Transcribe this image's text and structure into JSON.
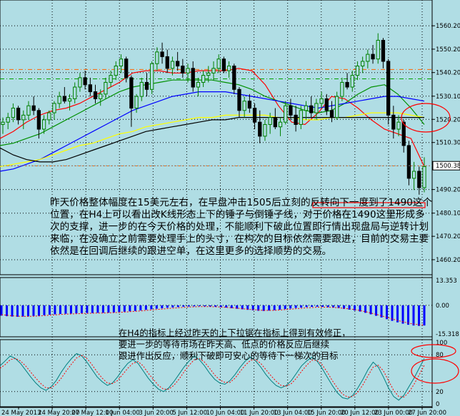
{
  "colors": {
    "background": "#b0dde4",
    "grid": "#000000",
    "bull": "#008000",
    "bear": "#000000",
    "ma_red": "#ff0000",
    "ma_blue": "#0000ff",
    "ma_yellow": "#ffff00",
    "ma_green": "#009000",
    "ma_black": "#000000",
    "level_orange": "#ff6600",
    "level_green": "#00a000",
    "price_box": "#ffffff",
    "macd_bar": "#0000ff",
    "macd_signal": "#ff0000",
    "stoch_main": "#008080",
    "stoch_signal": "#ff0000",
    "highlight": "#ff0000"
  },
  "annotations": {
    "main": "昨天价格整体幅度在15美元左右，在早盘冲击1505后立刻的反转向下一度到了1490这个位置，在H4上可以看出改K线形态上下的锤子与倒锤子线，对于价格在1490这里形成多次的支撑，进一步的在今天价格的处理，不能顺利下破此位置即行情出现盘局与逆转计划来临，在没确立之前需要处理手上的头寸，在构次的目标依然需要跟进，目前的交易主要依然是在回调后继续的跟进空单，在这里更多的选择顺势的交易。",
    "indicator_lines": [
      "在H4的指标上经过昨天的上下拉锯在指标上得到有效修正，",
      "要进一步的等待市场在昨天高、低点的价格反应后继续",
      "跟进作出反应，顺利下破即可安心的等待下一梯次的目标"
    ]
  },
  "chart_data": [
    {
      "type": "candlestick",
      "title": "",
      "timeframe": "H4",
      "ylim": [
        1455,
        1570
      ],
      "y_ticks": [
        1560.2,
        1550.2,
        1540.2,
        1530.1,
        1520.2,
        1510.3,
        1500.38,
        1490.2,
        1480.1,
        1470.2,
        1460.2
      ],
      "current_price": 1500.38,
      "x_ticks": [
        "24 May 2013",
        "24 May 20:00",
        "27 May 12:00",
        "1 Jun 04:00",
        "3 Jun 20:00",
        "5 Jun 12:00",
        "10 Jun 04:00",
        "11 Jun 20:00",
        "13 Jun 04:00",
        "15 Jun 20:00",
        "20 Jun 12:00",
        "23 Jun 00:00",
        "27 Jun 20:00"
      ],
      "levels": [
        {
          "value": 1541.5,
          "style": "dash-dot",
          "color": "#ff6600"
        },
        {
          "value": 1537.5,
          "style": "dash-dot",
          "color": "#00a000"
        },
        {
          "value": 1500.3,
          "style": "dotted",
          "color": "#ff6600"
        }
      ],
      "candles": [
        [
          1518,
          1521,
          1514,
          1519
        ],
        [
          1519,
          1523,
          1516,
          1521
        ],
        [
          1521,
          1527,
          1519,
          1525
        ],
        [
          1525,
          1526,
          1518,
          1520
        ],
        [
          1520,
          1524,
          1516,
          1522
        ],
        [
          1522,
          1528,
          1520,
          1526
        ],
        [
          1526,
          1530,
          1522,
          1524
        ],
        [
          1524,
          1525,
          1512,
          1516
        ],
        [
          1516,
          1522,
          1514,
          1520
        ],
        [
          1520,
          1524,
          1518,
          1523
        ],
        [
          1523,
          1528,
          1520,
          1527
        ],
        [
          1527,
          1532,
          1525,
          1530
        ],
        [
          1530,
          1534,
          1527,
          1528
        ],
        [
          1528,
          1531,
          1524,
          1529
        ],
        [
          1529,
          1536,
          1527,
          1534
        ],
        [
          1534,
          1540,
          1532,
          1538
        ],
        [
          1538,
          1541,
          1533,
          1535
        ],
        [
          1535,
          1538,
          1530,
          1532
        ],
        [
          1532,
          1535,
          1527,
          1529
        ],
        [
          1529,
          1533,
          1526,
          1531
        ],
        [
          1531,
          1538,
          1529,
          1536
        ],
        [
          1536,
          1541,
          1534,
          1539
        ],
        [
          1539,
          1545,
          1537,
          1543
        ],
        [
          1543,
          1548,
          1540,
          1546
        ],
        [
          1546,
          1547,
          1536,
          1538
        ],
        [
          1538,
          1539,
          1517,
          1525
        ],
        [
          1525,
          1531,
          1523,
          1530
        ],
        [
          1530,
          1538,
          1528,
          1536
        ],
        [
          1536,
          1540,
          1530,
          1533
        ],
        [
          1533,
          1545,
          1531,
          1544
        ],
        [
          1544,
          1551,
          1541,
          1549
        ],
        [
          1549,
          1553,
          1544,
          1547
        ],
        [
          1547,
          1550,
          1540,
          1542
        ],
        [
          1542,
          1547,
          1539,
          1545
        ],
        [
          1545,
          1549,
          1541,
          1543
        ],
        [
          1543,
          1546,
          1538,
          1540
        ],
        [
          1540,
          1544,
          1536,
          1542
        ],
        [
          1542,
          1545,
          1532,
          1534
        ],
        [
          1534,
          1538,
          1530,
          1536
        ],
        [
          1536,
          1541,
          1534,
          1539
        ],
        [
          1539,
          1543,
          1536,
          1540
        ],
        [
          1540,
          1545,
          1537,
          1542
        ],
        [
          1542,
          1548,
          1540,
          1546
        ],
        [
          1546,
          1547,
          1540,
          1541
        ],
        [
          1541,
          1545,
          1538,
          1543
        ],
        [
          1543,
          1544,
          1531,
          1533
        ],
        [
          1533,
          1534,
          1521,
          1524
        ],
        [
          1524,
          1530,
          1521,
          1528
        ],
        [
          1528,
          1531,
          1523,
          1525
        ],
        [
          1525,
          1527,
          1516,
          1519
        ],
        [
          1519,
          1524,
          1510,
          1513
        ],
        [
          1513,
          1520,
          1511,
          1518
        ],
        [
          1518,
          1523,
          1514,
          1521
        ],
        [
          1521,
          1525,
          1516,
          1517
        ],
        [
          1517,
          1521,
          1513,
          1519
        ],
        [
          1519,
          1528,
          1518,
          1526
        ],
        [
          1526,
          1529,
          1520,
          1522
        ],
        [
          1522,
          1526,
          1515,
          1518
        ],
        [
          1518,
          1526,
          1516,
          1524
        ],
        [
          1524,
          1528,
          1520,
          1526
        ],
        [
          1526,
          1530,
          1521,
          1523
        ],
        [
          1523,
          1529,
          1520,
          1527
        ],
        [
          1527,
          1532,
          1525,
          1529
        ],
        [
          1529,
          1531,
          1522,
          1524
        ],
        [
          1524,
          1528,
          1519,
          1521
        ],
        [
          1521,
          1532,
          1520,
          1530
        ],
        [
          1530,
          1538,
          1528,
          1536
        ],
        [
          1536,
          1540,
          1533,
          1534
        ],
        [
          1534,
          1541,
          1532,
          1539
        ],
        [
          1539,
          1545,
          1537,
          1543
        ],
        [
          1543,
          1547,
          1540,
          1545
        ],
        [
          1545,
          1550,
          1542,
          1548
        ],
        [
          1548,
          1552,
          1544,
          1546
        ],
        [
          1546,
          1557,
          1544,
          1554
        ],
        [
          1554,
          1555,
          1542,
          1545
        ],
        [
          1545,
          1546,
          1518,
          1522
        ],
        [
          1522,
          1526,
          1512,
          1516
        ],
        [
          1516,
          1522,
          1513,
          1519
        ],
        [
          1519,
          1520,
          1506,
          1509
        ],
        [
          1509,
          1511,
          1492,
          1495
        ],
        [
          1495,
          1502,
          1490,
          1498
        ],
        [
          1498,
          1500,
          1488,
          1491
        ],
        [
          1491,
          1504,
          1489,
          1500
        ]
      ],
      "moving_averages": [
        {
          "color": "#ff0000",
          "values": [
            1512,
            1515,
            1519,
            1522,
            1524,
            1525,
            1527,
            1530,
            1533,
            1536,
            1540,
            1541,
            1541,
            1540,
            1540,
            1541,
            1541,
            1541,
            1542,
            1541,
            1535,
            1526,
            1519,
            1518,
            1523,
            1530,
            1529,
            1525,
            1520,
            1516,
            1514,
            1512,
            1500
          ]
        },
        {
          "color": "#009000",
          "values": [
            1509,
            1510,
            1512,
            1514,
            1517,
            1520,
            1523,
            1526,
            1529,
            1532,
            1534,
            1535,
            1536,
            1537,
            1537,
            1537,
            1537,
            1536,
            1535,
            1533,
            1530,
            1528,
            1526,
            1524,
            1523,
            1524,
            1527,
            1531,
            1534,
            1535,
            1531,
            1525,
            1518
          ]
        },
        {
          "color": "#0000ff",
          "values": [
            1498,
            1499,
            1501,
            1503,
            1506,
            1509,
            1512,
            1515,
            1518,
            1521,
            1524,
            1526,
            1528,
            1530,
            1531,
            1532,
            1532,
            1532,
            1531,
            1530,
            1529,
            1528,
            1527,
            1526,
            1525,
            1526,
            1527,
            1528,
            1529,
            1530,
            1530,
            1529,
            1528
          ]
        },
        {
          "color": "#ffff00",
          "values": [
            1500,
            1501,
            1502,
            1503,
            1505,
            1507,
            1509,
            1510,
            1512,
            1514,
            1515,
            1517,
            1518,
            1519,
            1520,
            1521,
            1521,
            1522,
            1522,
            1522,
            1522,
            1521,
            1521,
            1520,
            1520,
            1521,
            1521,
            1522,
            1523,
            1523,
            1523,
            1522,
            1521
          ]
        },
        {
          "color": "#000000",
          "values": [
            1508,
            1505,
            1503,
            1502,
            1502,
            1503,
            1505,
            1507,
            1509,
            1511,
            1513,
            1515,
            1516,
            1517,
            1518,
            1519,
            1520,
            1520,
            1521,
            1521,
            1521,
            1521,
            1521,
            1521,
            1521,
            1521,
            1521,
            1521,
            1521,
            1521,
            1521,
            1521,
            1521
          ]
        }
      ]
    },
    {
      "type": "bar",
      "title": "",
      "ylim": [
        -15.318,
        13.353
      ],
      "y_ticks": [
        13.353,
        0.0,
        -15.318
      ],
      "values": [
        -5.5,
        -5.8,
        -6.0,
        -6.1,
        -6.0,
        -5.9,
        -5.7,
        -5.6,
        -5.3,
        -5.0,
        -4.8,
        -4.6,
        -4.5,
        -4.4,
        -4.3,
        -4.2,
        -4.1,
        -4.1,
        -4.0,
        -4.0,
        -3.9,
        -3.8,
        -3.6,
        -3.4,
        -3.2,
        -3.0,
        -2.7,
        -2.4,
        -2.1,
        -1.8,
        -1.6,
        -1.3,
        -1.1,
        -0.9,
        -0.7,
        -0.6,
        -0.5,
        -0.4,
        -0.5,
        -0.6,
        -0.8,
        -1.0,
        -1.2,
        -1.5,
        -1.8,
        -2.1,
        -2.4,
        -2.7,
        -2.9,
        -3.0,
        -2.8,
        -2.6,
        -2.3,
        -2.0,
        -1.7,
        -1.4,
        -1.2,
        -0.9,
        -0.8,
        -0.7,
        -0.8,
        -1.0,
        -1.2,
        -1.5,
        -1.9,
        -2.3,
        -2.8,
        -3.3,
        -4.0,
        -4.8,
        -5.6,
        -6.5,
        -7.4,
        -8.3,
        -9.1,
        -9.8,
        -10.4,
        -10.8,
        -11.0,
        -10.8
      ],
      "signal": [
        -5.0,
        -5.3,
        -5.6,
        -5.8,
        -5.9,
        -5.9,
        -5.8,
        -5.7,
        -5.5,
        -5.3,
        -5.1,
        -4.9,
        -4.7,
        -4.6,
        -4.5,
        -4.4,
        -4.3,
        -4.2,
        -4.1,
        -4.1,
        -4.0,
        -3.9,
        -3.8,
        -3.6,
        -3.4,
        -3.2,
        -3.0,
        -2.7,
        -2.5,
        -2.2,
        -2.0,
        -1.7,
        -1.5,
        -1.3,
        -1.1,
        -0.9,
        -0.8,
        -0.7,
        -0.7,
        -0.7,
        -0.8,
        -0.9,
        -1.1,
        -1.3,
        -1.5,
        -1.8,
        -2.1,
        -2.3,
        -2.5,
        -2.7,
        -2.7,
        -2.7,
        -2.5,
        -2.3,
        -2.1,
        -1.8,
        -1.6,
        -1.3,
        -1.2,
        -1.0,
        -1.0,
        -1.0,
        -1.1,
        -1.3,
        -1.6,
        -1.9,
        -2.3,
        -2.8,
        -3.4,
        -4.1,
        -4.8,
        -5.6,
        -6.4,
        -7.3,
        -8.1,
        -8.8,
        -9.5,
        -10.0,
        -10.4,
        -10.5
      ]
    },
    {
      "type": "line",
      "title": "",
      "ylim": [
        0,
        100
      ],
      "y_ticks": [
        100,
        80,
        20,
        0
      ],
      "series": [
        {
          "values": [
            62,
            70,
            78,
            74,
            66,
            55,
            44,
            34,
            26,
            22,
            28,
            38,
            52,
            64,
            74,
            82,
            78,
            68,
            56,
            44,
            36,
            30,
            34,
            44,
            56,
            66,
            72,
            66,
            54,
            42,
            32,
            24,
            20,
            26,
            36,
            48,
            60,
            70,
            78,
            72,
            62,
            50,
            40,
            34,
            32,
            38,
            48,
            60,
            70,
            76,
            70,
            60,
            48,
            38,
            30,
            26,
            30,
            38,
            50,
            62,
            70,
            76,
            70,
            58,
            44,
            30,
            18,
            10,
            8,
            14,
            26,
            40,
            56,
            68,
            60,
            44,
            26,
            12,
            6,
            14,
            28,
            42,
            58,
            74
          ]
        },
        {
          "values": [
            58,
            64,
            72,
            74,
            70,
            62,
            52,
            42,
            33,
            26,
            26,
            32,
            42,
            54,
            65,
            75,
            79,
            74,
            64,
            52,
            42,
            34,
            33,
            38,
            48,
            58,
            66,
            69,
            62,
            50,
            40,
            30,
            24,
            24,
            30,
            40,
            52,
            63,
            72,
            74,
            68,
            58,
            47,
            39,
            35,
            35,
            42,
            53,
            63,
            71,
            72,
            66,
            56,
            46,
            37,
            30,
            29,
            33,
            42,
            53,
            63,
            71,
            71,
            64,
            52,
            38,
            26,
            16,
            11,
            12,
            19,
            31,
            46,
            60,
            63,
            54,
            38,
            22,
            12,
            11,
            19,
            32,
            47,
            63
          ]
        }
      ]
    }
  ]
}
